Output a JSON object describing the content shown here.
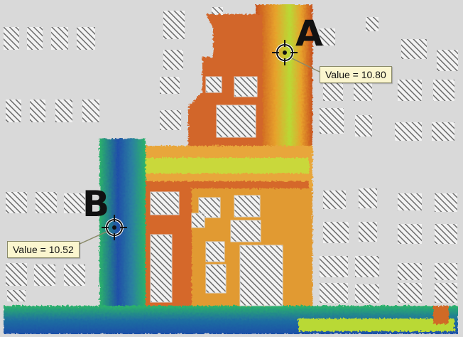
{
  "points": [
    {
      "id": "A",
      "label": "A",
      "value_text": "Value = 10.80"
    },
    {
      "id": "B",
      "label": "B",
      "value_text": "Value = 10.52"
    }
  ],
  "colors": {
    "background": "#d9d9d9",
    "building_hatch": "#6d6d6d",
    "low": "#1f4fa8",
    "mid_low": "#2bb36a",
    "mid": "#b9d935",
    "mid_high": "#f0b232",
    "high": "#c8521e"
  },
  "icons": [
    "crosshair-icon"
  ]
}
